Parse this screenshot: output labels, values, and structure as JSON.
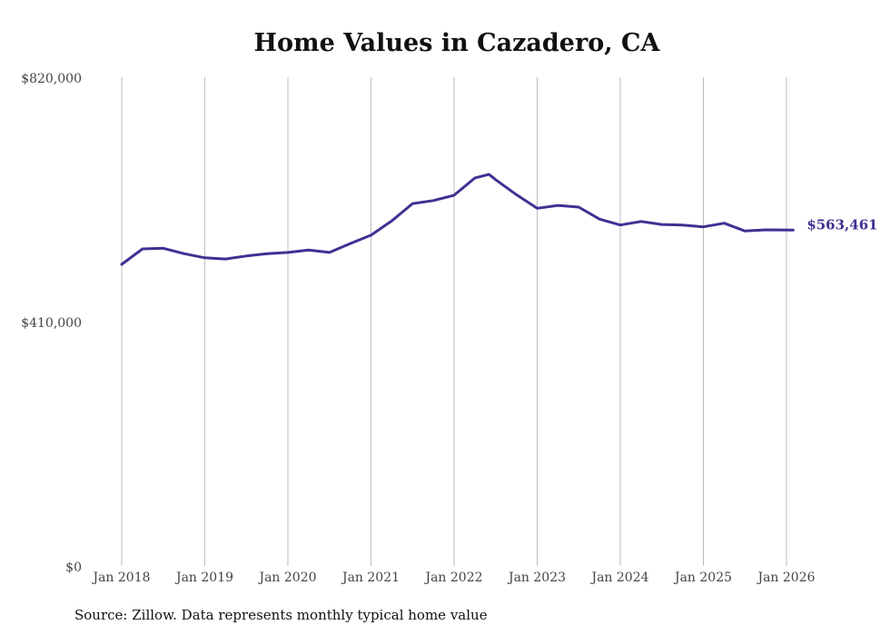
{
  "chart_data": {
    "type": "line",
    "title": "Home Values in Cazadero, CA",
    "source": "Source: Zillow. Data represents monthly typical home value",
    "xlabel": "",
    "ylabel": "",
    "ylim": [
      0,
      820000
    ],
    "xlim": [
      2018.0,
      2026.2
    ],
    "y_ticks": [
      {
        "value": 0,
        "label": "$0"
      },
      {
        "value": 410000,
        "label": "$410,000"
      },
      {
        "value": 820000,
        "label": "$820,000"
      }
    ],
    "x_ticks": [
      {
        "value": 2018,
        "label": "Jan 2018"
      },
      {
        "value": 2019,
        "label": "Jan 2019"
      },
      {
        "value": 2020,
        "label": "Jan 2020"
      },
      {
        "value": 2021,
        "label": "Jan 2021"
      },
      {
        "value": 2022,
        "label": "Jan 2022"
      },
      {
        "value": 2023,
        "label": "Jan 2023"
      },
      {
        "value": 2024,
        "label": "Jan 2024"
      },
      {
        "value": 2025,
        "label": "Jan 2025"
      },
      {
        "value": 2026,
        "label": "Jan 2026"
      }
    ],
    "grid": "vertical",
    "series": [
      {
        "name": "Typical home value",
        "color": "#3d3293",
        "end_label": "$563,461",
        "x": [
          2018.0,
          2018.25,
          2018.5,
          2018.75,
          2019.0,
          2019.25,
          2019.5,
          2019.75,
          2020.0,
          2020.25,
          2020.5,
          2020.75,
          2021.0,
          2021.25,
          2021.5,
          2021.75,
          2022.0,
          2022.25,
          2022.42,
          2022.5,
          2022.75,
          2023.0,
          2023.25,
          2023.5,
          2023.75,
          2024.0,
          2024.25,
          2024.5,
          2024.75,
          2025.0,
          2025.25,
          2025.5,
          2025.75,
          2026.08
        ],
        "values": [
          506000,
          532000,
          533000,
          524000,
          517000,
          515000,
          520000,
          524000,
          526000,
          530000,
          526000,
          541000,
          555000,
          579000,
          608000,
          613000,
          622000,
          651000,
          657000,
          648000,
          623000,
          600000,
          605000,
          602000,
          582000,
          572000,
          578000,
          573000,
          572000,
          569000,
          575000,
          562000,
          564000,
          563461
        ]
      }
    ]
  }
}
